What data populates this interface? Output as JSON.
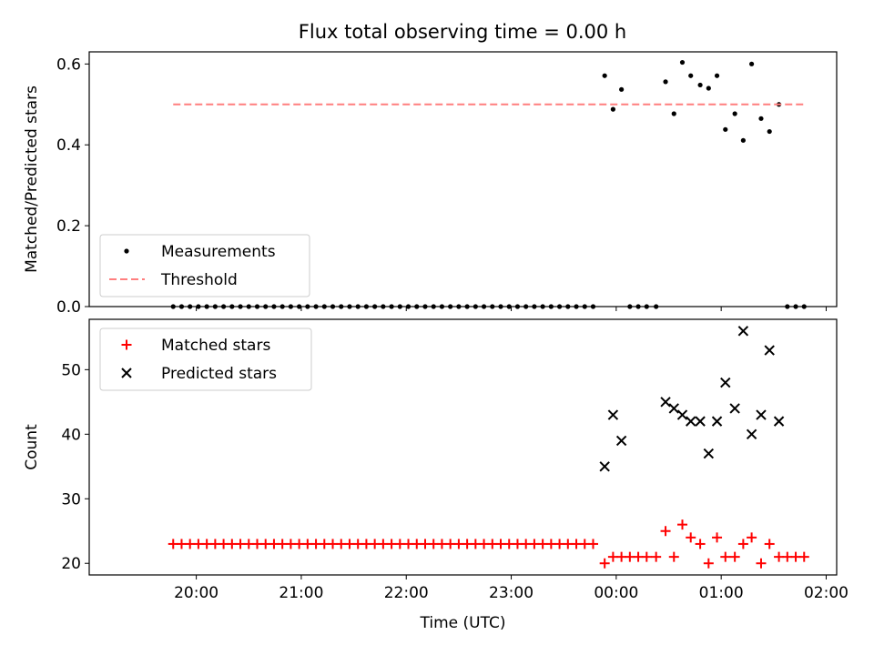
{
  "figure_title": "Flux total observing time = 0.00 h",
  "chart_data": [
    {
      "type": "scatter",
      "ylabel": "Matched/Predicted stars",
      "xlabel": "",
      "x_unit": "hours relative to 00:00 UTC",
      "xlim": [
        -5.02,
        2.1
      ],
      "ylim": [
        0,
        0.63
      ],
      "yticks": [
        0.0,
        0.2,
        0.4,
        0.6
      ],
      "ytick_labels": [
        "0.0",
        "0.2",
        "0.4",
        "0.6"
      ],
      "legend_position": "lower-left",
      "series": [
        {
          "name": "Measurements",
          "marker": "dot",
          "color": "#000000",
          "points": [
            [
              -4.22,
              0
            ],
            [
              -4.14,
              0
            ],
            [
              -4.06,
              0
            ],
            [
              -3.98,
              0
            ],
            [
              -3.9,
              0
            ],
            [
              -3.82,
              0
            ],
            [
              -3.74,
              0
            ],
            [
              -3.66,
              0
            ],
            [
              -3.58,
              0
            ],
            [
              -3.5,
              0
            ],
            [
              -3.42,
              0
            ],
            [
              -3.34,
              0
            ],
            [
              -3.26,
              0
            ],
            [
              -3.18,
              0
            ],
            [
              -3.1,
              0
            ],
            [
              -3.02,
              0
            ],
            [
              -2.94,
              0
            ],
            [
              -2.86,
              0
            ],
            [
              -2.78,
              0
            ],
            [
              -2.7,
              0
            ],
            [
              -2.62,
              0
            ],
            [
              -2.54,
              0
            ],
            [
              -2.46,
              0
            ],
            [
              -2.38,
              0
            ],
            [
              -2.3,
              0
            ],
            [
              -2.22,
              0
            ],
            [
              -2.14,
              0
            ],
            [
              -2.06,
              0
            ],
            [
              -1.98,
              0
            ],
            [
              -1.9,
              0
            ],
            [
              -1.82,
              0
            ],
            [
              -1.74,
              0
            ],
            [
              -1.66,
              0
            ],
            [
              -1.58,
              0
            ],
            [
              -1.5,
              0
            ],
            [
              -1.42,
              0
            ],
            [
              -1.34,
              0
            ],
            [
              -1.26,
              0
            ],
            [
              -1.18,
              0
            ],
            [
              -1.1,
              0
            ],
            [
              -1.02,
              0
            ],
            [
              -0.94,
              0
            ],
            [
              -0.86,
              0
            ],
            [
              -0.78,
              0
            ],
            [
              -0.7,
              0
            ],
            [
              -0.62,
              0
            ],
            [
              -0.54,
              0
            ],
            [
              -0.46,
              0
            ],
            [
              -0.38,
              0
            ],
            [
              -0.3,
              0
            ],
            [
              -0.22,
              0
            ],
            [
              -0.11,
              0.571
            ],
            [
              -0.03,
              0.488
            ],
            [
              0.05,
              0.537
            ],
            [
              0.13,
              0
            ],
            [
              0.21,
              0
            ],
            [
              0.29,
              0
            ],
            [
              0.38,
              0
            ],
            [
              0.47,
              0.556
            ],
            [
              0.55,
              0.477
            ],
            [
              0.63,
              0.604
            ],
            [
              0.71,
              0.571
            ],
            [
              0.8,
              0.548
            ],
            [
              0.88,
              0.54
            ],
            [
              0.96,
              0.571
            ],
            [
              1.04,
              0.438
            ],
            [
              1.13,
              0.477
            ],
            [
              1.21,
              0.411
            ],
            [
              1.29,
              0.6
            ],
            [
              1.38,
              0.465
            ],
            [
              1.46,
              0.433
            ],
            [
              1.55,
              0.5
            ],
            [
              1.63,
              0
            ],
            [
              1.71,
              0
            ],
            [
              1.79,
              0
            ]
          ]
        },
        {
          "name": "Threshold",
          "marker": "dashed-line",
          "color": "#ff7f7f",
          "points": [
            [
              -4.22,
              0.5
            ],
            [
              1.79,
              0.5
            ]
          ]
        }
      ]
    },
    {
      "type": "scatter",
      "ylabel": "Count",
      "xlabel": "Time (UTC)",
      "x_unit": "hours relative to 00:00 UTC",
      "xlim": [
        -5.02,
        2.1
      ],
      "ylim": [
        18.2,
        57.8
      ],
      "yticks": [
        20,
        30,
        40,
        50
      ],
      "ytick_labels": [
        "20",
        "30",
        "40",
        "50"
      ],
      "xticks": [
        -4,
        -3,
        -2,
        -1,
        0,
        1,
        2
      ],
      "xtick_labels": [
        "20:00",
        "21:00",
        "22:00",
        "23:00",
        "00:00",
        "01:00",
        "02:00"
      ],
      "legend_position": "upper-left",
      "series": [
        {
          "name": "Matched stars",
          "marker": "plus",
          "color": "#ff0000",
          "points": [
            [
              -4.22,
              23
            ],
            [
              -4.14,
              23
            ],
            [
              -4.06,
              23
            ],
            [
              -3.98,
              23
            ],
            [
              -3.9,
              23
            ],
            [
              -3.82,
              23
            ],
            [
              -3.74,
              23
            ],
            [
              -3.66,
              23
            ],
            [
              -3.58,
              23
            ],
            [
              -3.5,
              23
            ],
            [
              -3.42,
              23
            ],
            [
              -3.34,
              23
            ],
            [
              -3.26,
              23
            ],
            [
              -3.18,
              23
            ],
            [
              -3.1,
              23
            ],
            [
              -3.02,
              23
            ],
            [
              -2.94,
              23
            ],
            [
              -2.86,
              23
            ],
            [
              -2.78,
              23
            ],
            [
              -2.7,
              23
            ],
            [
              -2.62,
              23
            ],
            [
              -2.54,
              23
            ],
            [
              -2.46,
              23
            ],
            [
              -2.38,
              23
            ],
            [
              -2.3,
              23
            ],
            [
              -2.22,
              23
            ],
            [
              -2.14,
              23
            ],
            [
              -2.06,
              23
            ],
            [
              -1.98,
              23
            ],
            [
              -1.9,
              23
            ],
            [
              -1.82,
              23
            ],
            [
              -1.74,
              23
            ],
            [
              -1.66,
              23
            ],
            [
              -1.58,
              23
            ],
            [
              -1.5,
              23
            ],
            [
              -1.42,
              23
            ],
            [
              -1.34,
              23
            ],
            [
              -1.26,
              23
            ],
            [
              -1.18,
              23
            ],
            [
              -1.1,
              23
            ],
            [
              -1.02,
              23
            ],
            [
              -0.94,
              23
            ],
            [
              -0.86,
              23
            ],
            [
              -0.78,
              23
            ],
            [
              -0.7,
              23
            ],
            [
              -0.62,
              23
            ],
            [
              -0.54,
              23
            ],
            [
              -0.46,
              23
            ],
            [
              -0.38,
              23
            ],
            [
              -0.3,
              23
            ],
            [
              -0.22,
              23
            ],
            [
              -0.11,
              20
            ],
            [
              -0.03,
              21
            ],
            [
              0.05,
              21
            ],
            [
              0.13,
              21
            ],
            [
              0.21,
              21
            ],
            [
              0.29,
              21
            ],
            [
              0.38,
              21
            ],
            [
              0.47,
              25
            ],
            [
              0.55,
              21
            ],
            [
              0.63,
              26
            ],
            [
              0.71,
              24
            ],
            [
              0.8,
              23
            ],
            [
              0.88,
              20
            ],
            [
              0.96,
              24
            ],
            [
              1.04,
              21
            ],
            [
              1.13,
              21
            ],
            [
              1.21,
              23
            ],
            [
              1.29,
              24
            ],
            [
              1.38,
              20
            ],
            [
              1.46,
              23
            ],
            [
              1.55,
              21
            ],
            [
              1.63,
              21
            ],
            [
              1.71,
              21
            ],
            [
              1.79,
              21
            ]
          ]
        },
        {
          "name": "Predicted stars",
          "marker": "x",
          "color": "#000000",
          "points": [
            [
              -0.11,
              35
            ],
            [
              -0.03,
              43
            ],
            [
              0.05,
              39
            ],
            [
              0.47,
              45
            ],
            [
              0.55,
              44
            ],
            [
              0.63,
              43
            ],
            [
              0.71,
              42
            ],
            [
              0.8,
              42
            ],
            [
              0.88,
              37
            ],
            [
              0.96,
              42
            ],
            [
              1.04,
              48
            ],
            [
              1.13,
              44
            ],
            [
              1.21,
              56
            ],
            [
              1.29,
              40
            ],
            [
              1.38,
              43
            ],
            [
              1.46,
              53
            ],
            [
              1.55,
              42
            ]
          ]
        }
      ]
    }
  ]
}
